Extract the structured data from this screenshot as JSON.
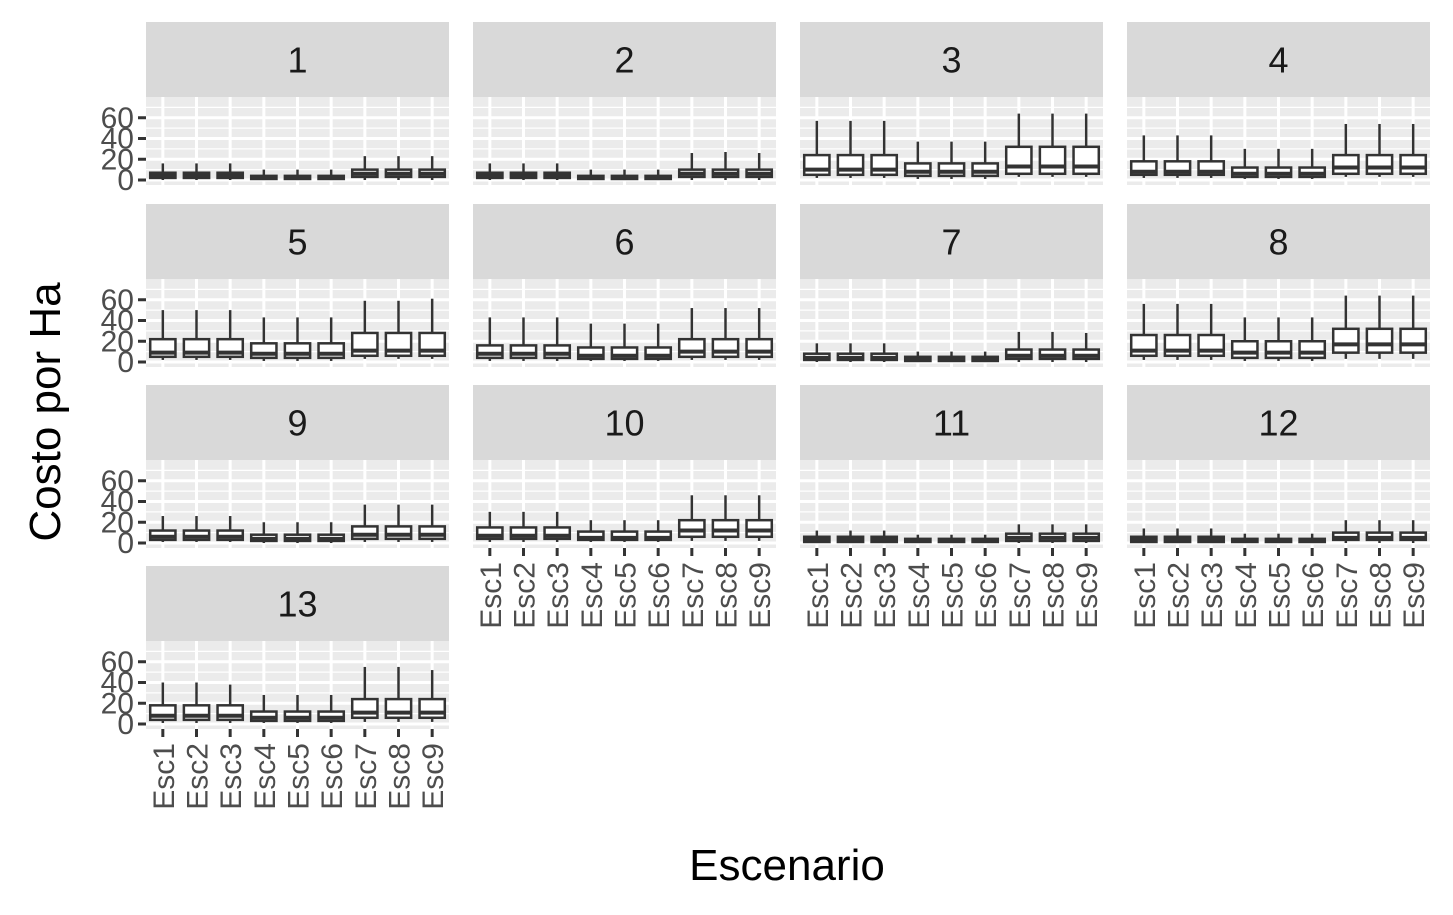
{
  "chart_data": {
    "type": "boxplot",
    "xlabel": "Escenario",
    "ylabel": "Costo por Ha",
    "categories": [
      "Esc1",
      "Esc2",
      "Esc3",
      "Esc4",
      "Esc5",
      "Esc6",
      "Esc7",
      "Esc8",
      "Esc9"
    ],
    "y_ticks": [
      0,
      20,
      40,
      60
    ],
    "ylim": [
      0,
      80
    ],
    "facet_layout": "4 columns, 4 rows (facet_wrap)",
    "grid": true,
    "colors": {
      "panel_bg": "#ebebeb",
      "strip_bg": "#d9d9d9",
      "grid": "#ffffff",
      "box_line": "#333333",
      "tick_text": "#4d4d4d"
    },
    "panels": [
      {
        "label": "1",
        "boxes": [
          [
            0,
            2,
            4,
            7,
            16
          ],
          [
            0,
            2,
            4,
            7,
            16
          ],
          [
            0,
            2,
            4,
            7,
            16
          ],
          [
            0,
            1,
            2,
            4,
            10
          ],
          [
            0,
            1,
            2,
            4,
            10
          ],
          [
            0,
            1,
            2,
            4,
            10
          ],
          [
            0,
            3,
            6,
            10,
            23
          ],
          [
            0,
            3,
            6,
            10,
            23
          ],
          [
            0,
            3,
            6,
            10,
            23
          ]
        ]
      },
      {
        "label": "2",
        "boxes": [
          [
            0,
            2,
            4,
            7,
            16
          ],
          [
            0,
            2,
            4,
            7,
            16
          ],
          [
            0,
            2,
            4,
            7,
            16
          ],
          [
            0,
            1,
            2,
            4,
            10
          ],
          [
            0,
            1,
            2,
            4,
            10
          ],
          [
            0,
            1,
            2,
            4,
            10
          ],
          [
            0,
            3,
            6,
            10,
            26
          ],
          [
            0,
            3,
            6,
            10,
            27
          ],
          [
            0,
            3,
            6,
            10,
            26
          ]
        ]
      },
      {
        "label": "3",
        "boxes": [
          [
            2,
            5,
            10,
            24,
            57
          ],
          [
            2,
            5,
            10,
            24,
            57
          ],
          [
            2,
            5,
            10,
            24,
            57
          ],
          [
            1,
            4,
            8,
            16,
            37
          ],
          [
            1,
            4,
            8,
            16,
            37
          ],
          [
            1,
            4,
            8,
            16,
            37
          ],
          [
            3,
            6,
            13,
            32,
            64
          ],
          [
            3,
            6,
            13,
            32,
            64
          ],
          [
            3,
            6,
            13,
            32,
            64
          ]
        ]
      },
      {
        "label": "4",
        "boxes": [
          [
            2,
            5,
            8,
            18,
            43
          ],
          [
            2,
            5,
            8,
            18,
            43
          ],
          [
            2,
            5,
            8,
            18,
            43
          ],
          [
            1,
            3,
            6,
            12,
            30
          ],
          [
            1,
            3,
            6,
            12,
            30
          ],
          [
            1,
            3,
            6,
            12,
            30
          ],
          [
            3,
            6,
            12,
            24,
            54
          ],
          [
            3,
            6,
            12,
            24,
            54
          ],
          [
            3,
            6,
            12,
            24,
            54
          ]
        ]
      },
      {
        "label": "5",
        "boxes": [
          [
            2,
            5,
            9,
            22,
            50
          ],
          [
            2,
            5,
            9,
            22,
            50
          ],
          [
            2,
            5,
            9,
            22,
            50
          ],
          [
            1,
            4,
            8,
            18,
            43
          ],
          [
            1,
            4,
            8,
            18,
            43
          ],
          [
            1,
            4,
            8,
            18,
            43
          ],
          [
            3,
            6,
            11,
            28,
            59
          ],
          [
            3,
            6,
            11,
            28,
            59
          ],
          [
            3,
            6,
            11,
            28,
            61
          ]
        ]
      },
      {
        "label": "6",
        "boxes": [
          [
            1,
            4,
            8,
            16,
            43
          ],
          [
            1,
            4,
            8,
            16,
            43
          ],
          [
            1,
            4,
            8,
            16,
            43
          ],
          [
            1,
            3,
            6,
            14,
            37
          ],
          [
            1,
            3,
            6,
            14,
            37
          ],
          [
            1,
            3,
            6,
            14,
            37
          ],
          [
            2,
            5,
            10,
            22,
            52
          ],
          [
            2,
            5,
            10,
            22,
            52
          ],
          [
            2,
            5,
            10,
            22,
            52
          ]
        ]
      },
      {
        "label": "7",
        "boxes": [
          [
            0,
            2,
            4,
            8,
            18
          ],
          [
            0,
            2,
            4,
            8,
            18
          ],
          [
            0,
            2,
            4,
            8,
            18
          ],
          [
            0,
            1,
            2,
            5,
            10
          ],
          [
            0,
            1,
            2,
            5,
            10
          ],
          [
            0,
            1,
            2,
            5,
            10
          ],
          [
            0,
            3,
            6,
            12,
            29
          ],
          [
            0,
            3,
            6,
            12,
            29
          ],
          [
            0,
            3,
            6,
            12,
            28
          ]
        ]
      },
      {
        "label": "8",
        "boxes": [
          [
            2,
            6,
            11,
            26,
            56
          ],
          [
            2,
            6,
            11,
            26,
            56
          ],
          [
            2,
            6,
            11,
            26,
            56
          ],
          [
            1,
            4,
            9,
            20,
            43
          ],
          [
            1,
            4,
            9,
            20,
            43
          ],
          [
            1,
            4,
            9,
            20,
            43
          ],
          [
            3,
            9,
            17,
            32,
            64
          ],
          [
            3,
            9,
            17,
            32,
            64
          ],
          [
            3,
            9,
            17,
            32,
            64
          ]
        ]
      },
      {
        "label": "9",
        "boxes": [
          [
            1,
            3,
            6,
            12,
            26
          ],
          [
            1,
            3,
            6,
            12,
            26
          ],
          [
            1,
            3,
            6,
            12,
            26
          ],
          [
            0,
            2,
            4,
            8,
            20
          ],
          [
            0,
            2,
            4,
            8,
            20
          ],
          [
            0,
            2,
            4,
            8,
            20
          ],
          [
            1,
            4,
            8,
            16,
            37
          ],
          [
            1,
            4,
            8,
            16,
            37
          ],
          [
            1,
            4,
            8,
            16,
            37
          ]
        ]
      },
      {
        "label": "10",
        "boxes": [
          [
            1,
            4,
            7,
            15,
            30
          ],
          [
            1,
            4,
            7,
            15,
            30
          ],
          [
            1,
            4,
            7,
            15,
            30
          ],
          [
            1,
            3,
            5,
            11,
            22
          ],
          [
            1,
            3,
            5,
            11,
            22
          ],
          [
            1,
            3,
            5,
            11,
            22
          ],
          [
            2,
            6,
            12,
            22,
            46
          ],
          [
            2,
            6,
            12,
            22,
            46
          ],
          [
            2,
            6,
            12,
            22,
            46
          ]
        ]
      },
      {
        "label": "11",
        "boxes": [
          [
            0,
            1,
            3,
            6,
            12
          ],
          [
            0,
            1,
            3,
            6,
            12
          ],
          [
            0,
            1,
            3,
            6,
            12
          ],
          [
            0,
            1,
            2,
            4,
            8
          ],
          [
            0,
            1,
            2,
            4,
            8
          ],
          [
            0,
            1,
            2,
            4,
            8
          ],
          [
            0,
            2,
            5,
            9,
            18
          ],
          [
            0,
            2,
            5,
            9,
            18
          ],
          [
            0,
            2,
            5,
            9,
            18
          ]
        ]
      },
      {
        "label": "12",
        "boxes": [
          [
            0,
            1,
            3,
            6,
            14
          ],
          [
            0,
            1,
            3,
            6,
            14
          ],
          [
            0,
            1,
            3,
            6,
            14
          ],
          [
            0,
            1,
            2,
            4,
            9
          ],
          [
            0,
            1,
            2,
            4,
            9
          ],
          [
            0,
            1,
            2,
            4,
            9
          ],
          [
            0,
            3,
            5,
            10,
            22
          ],
          [
            0,
            3,
            5,
            10,
            22
          ],
          [
            0,
            3,
            5,
            10,
            22
          ]
        ]
      },
      {
        "label": "13",
        "boxes": [
          [
            1,
            4,
            8,
            18,
            40
          ],
          [
            1,
            4,
            8,
            18,
            40
          ],
          [
            1,
            4,
            8,
            18,
            38
          ],
          [
            1,
            3,
            6,
            12,
            28
          ],
          [
            1,
            3,
            6,
            12,
            28
          ],
          [
            1,
            3,
            6,
            12,
            28
          ],
          [
            2,
            6,
            11,
            24,
            55
          ],
          [
            2,
            6,
            11,
            24,
            55
          ],
          [
            2,
            6,
            11,
            24,
            52
          ]
        ]
      }
    ]
  }
}
